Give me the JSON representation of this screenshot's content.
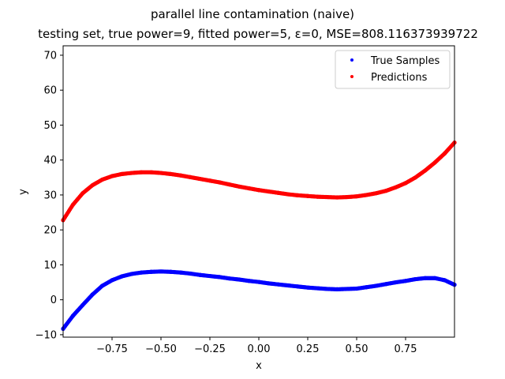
{
  "chart_data": {
    "type": "scatter",
    "title": "parallel line contamination (naive)",
    "subtitle": "testing set, true power=9, fitted power=5, ε=0, MSE=808.116373939722",
    "xlabel": "x",
    "ylabel": "y",
    "xlim": [
      -1.0,
      1.0
    ],
    "ylim": [
      -10.7,
      72.7
    ],
    "xticks": [
      -0.75,
      -0.5,
      -0.25,
      0.0,
      0.25,
      0.5,
      0.75
    ],
    "xtick_labels": [
      "−0.75",
      "−0.50",
      "−0.25",
      "0.00",
      "0.25",
      "0.50",
      "0.75"
    ],
    "yticks": [
      -10,
      0,
      10,
      20,
      30,
      40,
      50,
      60,
      70
    ],
    "ytick_labels": [
      "−10",
      "0",
      "10",
      "20",
      "30",
      "40",
      "50",
      "60",
      "70"
    ],
    "grid": false,
    "legend_position": "top-right",
    "series": [
      {
        "name": "True Samples",
        "color": "#0000ff",
        "x": [
          -1.0,
          -0.95,
          -0.9,
          -0.85,
          -0.8,
          -0.75,
          -0.7,
          -0.65,
          -0.6,
          -0.55,
          -0.5,
          -0.45,
          -0.4,
          -0.35,
          -0.3,
          -0.25,
          -0.2,
          -0.15,
          -0.1,
          -0.05,
          0.0,
          0.05,
          0.1,
          0.15,
          0.2,
          0.25,
          0.3,
          0.35,
          0.4,
          0.45,
          0.5,
          0.55,
          0.6,
          0.65,
          0.7,
          0.75,
          0.8,
          0.85,
          0.9,
          0.95,
          1.0
        ],
        "y": [
          -8.3,
          -4.6,
          -1.5,
          1.5,
          4.0,
          5.6,
          6.7,
          7.4,
          7.8,
          8.0,
          8.1,
          8.0,
          7.8,
          7.5,
          7.1,
          6.8,
          6.5,
          6.1,
          5.8,
          5.4,
          5.1,
          4.7,
          4.4,
          4.1,
          3.8,
          3.5,
          3.3,
          3.1,
          3.0,
          3.1,
          3.2,
          3.6,
          4.0,
          4.5,
          5.0,
          5.4,
          5.9,
          6.2,
          6.2,
          5.6,
          4.3
        ]
      },
      {
        "name": "Predictions",
        "color": "#ff0000",
        "x": [
          -1.0,
          -0.95,
          -0.9,
          -0.85,
          -0.8,
          -0.75,
          -0.7,
          -0.65,
          -0.6,
          -0.55,
          -0.5,
          -0.45,
          -0.4,
          -0.35,
          -0.3,
          -0.25,
          -0.2,
          -0.15,
          -0.1,
          -0.05,
          0.0,
          0.05,
          0.1,
          0.15,
          0.2,
          0.25,
          0.3,
          0.35,
          0.4,
          0.45,
          0.5,
          0.55,
          0.6,
          0.65,
          0.7,
          0.75,
          0.8,
          0.85,
          0.9,
          0.95,
          1.0
        ],
        "y": [
          22.8,
          27.2,
          30.5,
          32.8,
          34.4,
          35.4,
          36.0,
          36.3,
          36.5,
          36.5,
          36.3,
          36.0,
          35.6,
          35.1,
          34.6,
          34.1,
          33.6,
          33.0,
          32.4,
          31.9,
          31.4,
          31.0,
          30.6,
          30.2,
          29.9,
          29.7,
          29.5,
          29.4,
          29.3,
          29.4,
          29.6,
          30.0,
          30.5,
          31.2,
          32.2,
          33.4,
          35.0,
          37.0,
          39.3,
          41.9,
          45.0
        ]
      }
    ]
  }
}
